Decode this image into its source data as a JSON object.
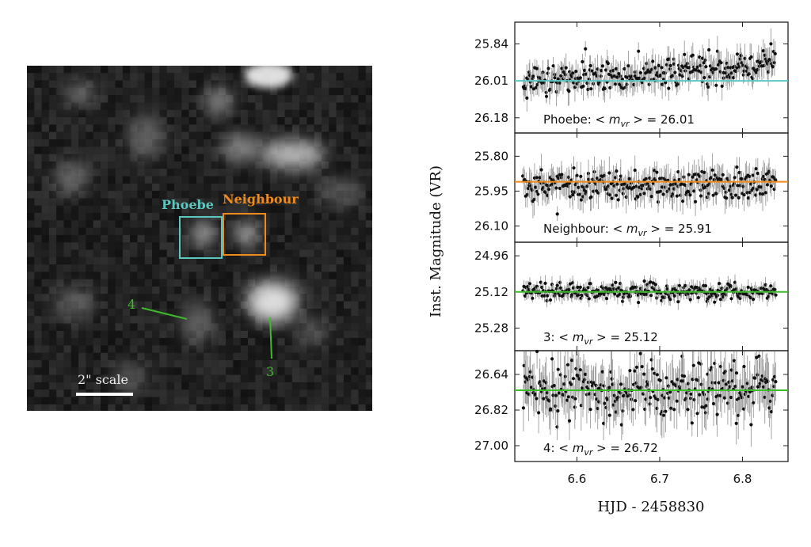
{
  "image_panel": {
    "markers": [
      {
        "label": "Phoebe",
        "color": "#5bc8c0"
      },
      {
        "label": "Neighbour",
        "color": "#f08a1c"
      },
      {
        "label": "3",
        "color": "#3dbb2a"
      },
      {
        "label": "4",
        "color": "#3dbb2a"
      }
    ],
    "scale_label": "2\" scale"
  },
  "chart_data": [
    {
      "type": "scatter",
      "series_label": "Phoebe:",
      "mean_text": "= 26.01",
      "mean": 26.01,
      "line_color": "#5bc8c0",
      "yticks": [
        25.84,
        26.01,
        26.18
      ],
      "ylim": [
        26.25,
        25.74
      ],
      "trend": [
        26.02,
        25.93
      ],
      "scatter": 0.035
    },
    {
      "type": "scatter",
      "series_label": "Neighbour:",
      "mean_text": "= 25.91",
      "mean": 25.91,
      "line_color": "#f08a1c",
      "yticks": [
        25.8,
        25.95,
        26.1
      ],
      "ylim": [
        26.17,
        25.7
      ],
      "trend": [
        25.93,
        25.92
      ],
      "scatter": 0.035
    },
    {
      "type": "scatter",
      "series_label": "3:",
      "mean_text": "= 25.12",
      "mean": 25.12,
      "line_color": "#3dbb2a",
      "yticks": [
        24.96,
        25.12,
        25.28
      ],
      "ylim": [
        25.38,
        24.9
      ],
      "trend": [
        25.12,
        25.12
      ],
      "scatter": 0.018
    },
    {
      "type": "scatter",
      "series_label": "4:",
      "mean_text": "= 26.72",
      "mean": 26.72,
      "line_color": "#3dbb2a",
      "yticks": [
        26.64,
        26.82,
        27.0
      ],
      "ylim": [
        27.08,
        26.52
      ],
      "trend": [
        26.72,
        26.72
      ],
      "scatter": 0.07
    }
  ],
  "axes": {
    "xlabel": "HJD - 2458830",
    "ylabel": "Inst. Magnitude (VR)",
    "xticks": [
      6.6,
      6.7,
      6.8
    ],
    "xlim": [
      6.525,
      6.855
    ],
    "data_xrange": [
      6.535,
      6.84
    ]
  }
}
